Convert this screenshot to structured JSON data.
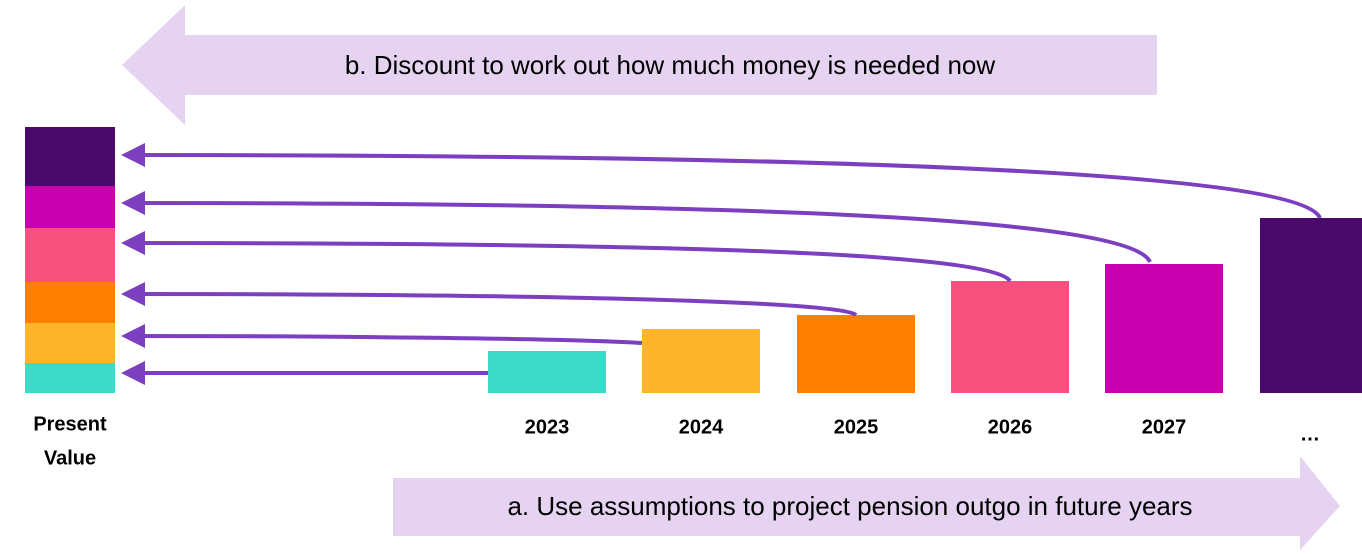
{
  "arrows": {
    "top": "b. Discount to work out how much money is needed now",
    "bottom": "a. Use assumptions to project pension outgo in future years"
  },
  "present_value": {
    "line1": "Present",
    "line2": "Value"
  },
  "years": [
    "2023",
    "2024",
    "2025",
    "2026",
    "2027",
    "…"
  ]
}
